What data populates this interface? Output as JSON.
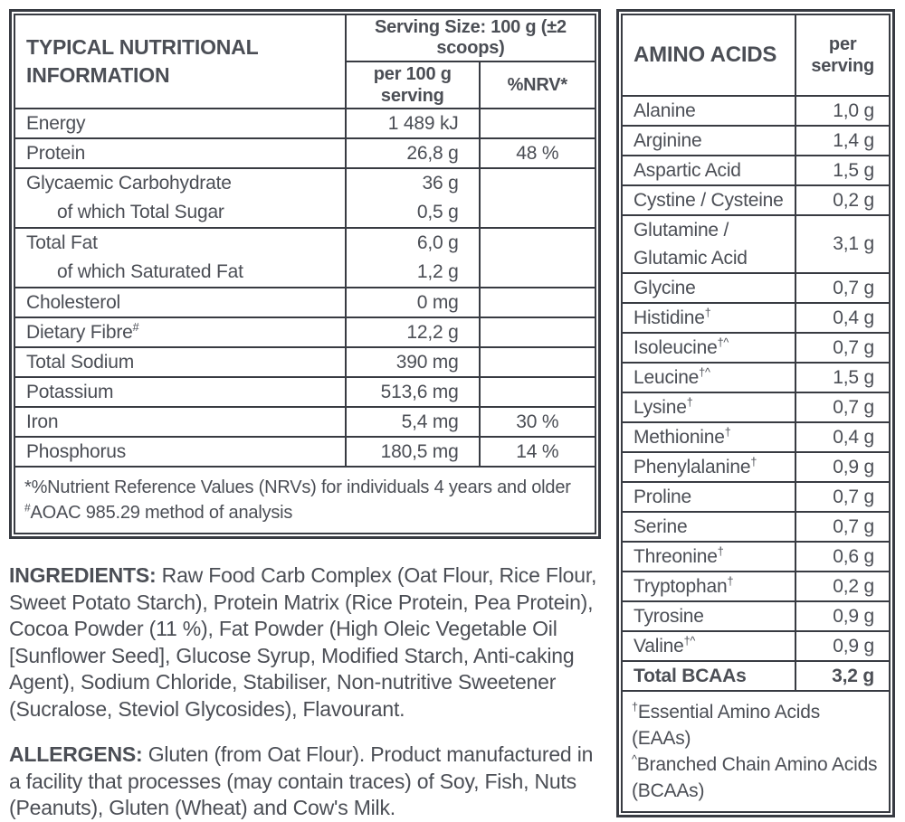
{
  "colors": {
    "text": "#4b4e55",
    "border": "#383b42",
    "background": "#ffffff"
  },
  "nutrition": {
    "title": "TYPICAL NUTRITIONAL INFORMATION",
    "serving_size": "Serving Size: 100 g (±2 scoops)",
    "col_amount": "per 100 g\nserving",
    "col_nrv": "%NRV*",
    "rows": [
      {
        "label": "Energy",
        "value": "1 489 kJ",
        "nrv": ""
      },
      {
        "label": "Protein",
        "value": "26,8 g",
        "nrv": "48 %"
      },
      {
        "label": "Glycaemic Carbohydrate",
        "value": "36 g",
        "sub_label": "of which Total Sugar",
        "sub_value": "0,5 g",
        "nrv": ""
      },
      {
        "label": "Total Fat",
        "value": "6,0 g",
        "sub_label": "of which Saturated Fat",
        "sub_value": "1,2 g",
        "nrv": ""
      },
      {
        "label": "Cholesterol",
        "value": "0 mg",
        "nrv": ""
      },
      {
        "label": "Dietary Fibre",
        "label_sup": "#",
        "value": "12,2 g",
        "nrv": ""
      },
      {
        "label": "Total Sodium",
        "value": "390 mg",
        "nrv": ""
      },
      {
        "label": "Potassium",
        "value": "513,6 mg",
        "nrv": ""
      },
      {
        "label": "Iron",
        "value": "5,4 mg",
        "nrv": "30 %"
      },
      {
        "label": "Phosphorus",
        "value": "180,5 mg",
        "nrv": "14 %"
      }
    ],
    "footnotes": [
      {
        "sup": "",
        "text": "*%Nutrient Reference Values (NRVs) for individuals 4 years and older"
      },
      {
        "sup": "#",
        "text": "AOAC 985.29 method of analysis"
      }
    ]
  },
  "ingredients": {
    "label": "INGREDIENTS:",
    "text": "Raw Food Carb Complex (Oat Flour, Rice Flour, Sweet Potato Starch), Protein Matrix (Rice Protein, Pea Protein), Cocoa Powder (11 %), Fat Powder (High Oleic Vegetable Oil [Sunflower Seed], Glucose Syrup, Modified Starch, Anti-caking Agent), Sodium Chloride, Stabiliser, Non-nutritive Sweetener (Sucralose, Steviol Glycosides), Flavourant."
  },
  "allergens": {
    "label": "ALLERGENS:",
    "text": "Gluten (from Oat Flour). Product manufactured in a facility that processes (may contain traces) of Soy, Fish, Nuts (Peanuts), Gluten (Wheat) and Cow's Milk."
  },
  "amino": {
    "title": "AMINO ACIDS",
    "col_amount": "per\nserving",
    "rows": [
      {
        "label": "Alanine",
        "value": "1,0 g"
      },
      {
        "label": "Arginine",
        "value": "1,4 g"
      },
      {
        "label": "Aspartic Acid",
        "value": "1,5 g"
      },
      {
        "label": "Cystine / Cysteine",
        "value": "0,2 g"
      },
      {
        "label": "Glutamine /\nGlutamic Acid",
        "value": "3,1 g",
        "tall": true
      },
      {
        "label": "Glycine",
        "value": "0,7 g"
      },
      {
        "label": "Histidine",
        "sup": "†",
        "value": "0,4 g"
      },
      {
        "label": "Isoleucine",
        "sup": "†^",
        "value": "0,7 g"
      },
      {
        "label": "Leucine",
        "sup": "†^",
        "value": "1,5 g"
      },
      {
        "label": "Lysine",
        "sup": "†",
        "value": "0,7 g"
      },
      {
        "label": "Methionine",
        "sup": "†",
        "value": "0,4 g"
      },
      {
        "label": "Phenylalanine",
        "sup": "†",
        "value": "0,9 g"
      },
      {
        "label": "Proline",
        "value": "0,7 g"
      },
      {
        "label": "Serine",
        "value": "0,7 g"
      },
      {
        "label": "Threonine",
        "sup": "†",
        "value": "0,6 g"
      },
      {
        "label": "Tryptophan",
        "sup": "†",
        "value": "0,2 g"
      },
      {
        "label": "Tyrosine",
        "value": "0,9 g"
      },
      {
        "label": "Valine",
        "sup": "†^",
        "value": "0,9 g"
      },
      {
        "label": "Total BCAAs",
        "value": "3,2 g",
        "bold": true
      }
    ],
    "footnotes": [
      {
        "sup": "†",
        "text": "Essential Amino Acids (EAAs)"
      },
      {
        "sup": "^",
        "text": "Branched Chain Amino Acids (BCAAs)"
      }
    ]
  }
}
